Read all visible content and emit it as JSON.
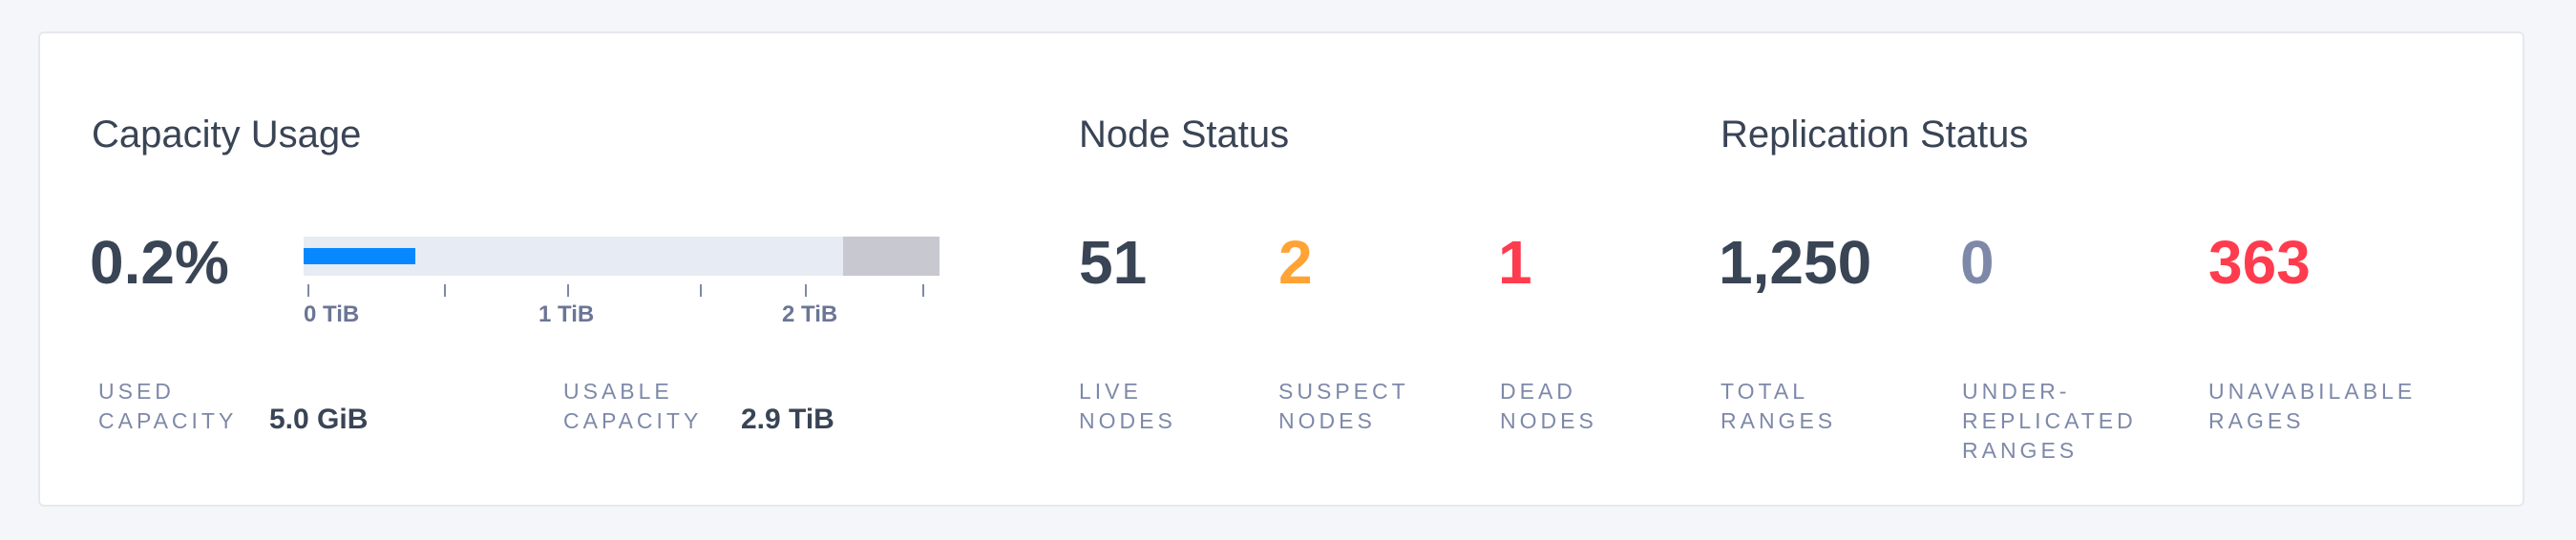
{
  "capacity": {
    "title": "Capacity Usage",
    "percent": "0.2%",
    "bar": {
      "used_fraction": 0.002,
      "fill_color": "#0788ff",
      "track_color": "#e7ebf3",
      "reserved_color": "#c7c8d0"
    },
    "axis_labels": [
      "0 TiB",
      "1 TiB",
      "2 TiB"
    ],
    "used_label": [
      "USED",
      "CAPACITY"
    ],
    "used_value": "5.0 GiB",
    "usable_label": [
      "USABLE",
      "CAPACITY"
    ],
    "usable_value": "2.9 TiB"
  },
  "nodes": {
    "title": "Node Status",
    "items": [
      {
        "value": "51",
        "label": [
          "LIVE",
          "NODES"
        ],
        "color": "#394455"
      },
      {
        "value": "2",
        "label": [
          "SUSPECT",
          "NODES"
        ],
        "color": "#ffa336"
      },
      {
        "value": "1",
        "label": [
          "DEAD",
          "NODES"
        ],
        "color": "#ff3b4e"
      }
    ]
  },
  "replication": {
    "title": "Replication Status",
    "items": [
      {
        "value": "1,250",
        "label": [
          "TOTAL",
          "RANGES"
        ],
        "color": "#394455"
      },
      {
        "value": "0",
        "label": [
          "UNDER-",
          "REPLICATED",
          "RANGES"
        ],
        "color": "#7e89a9"
      },
      {
        "value": "363",
        "label": [
          "UNAVABILABLE",
          "RAGES"
        ],
        "color": "#ff3b4e"
      }
    ]
  }
}
